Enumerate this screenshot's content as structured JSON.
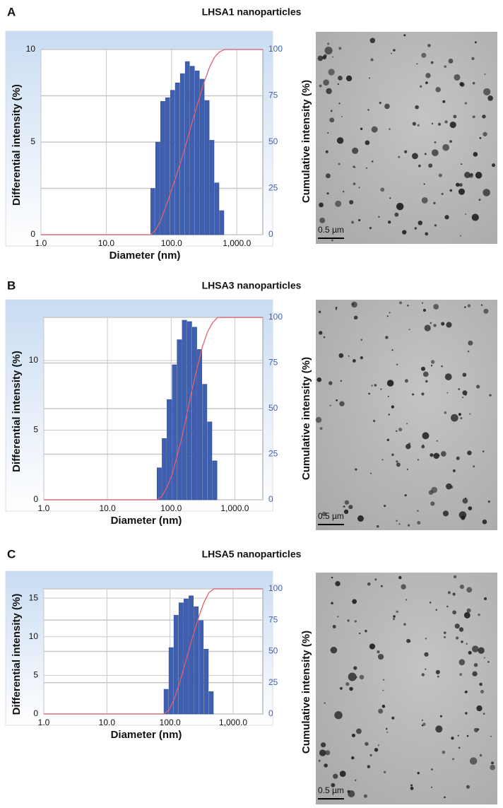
{
  "chart_data": [
    {
      "type": "histogram",
      "panel_label": "A",
      "title": "LHSA1 nanoparticles",
      "xlabel": "Diameter (nm)",
      "ylabel": "Differential intensity (%)",
      "y2label": "Cumulative intensity (%)",
      "log_x": true,
      "grid": true,
      "color": "#3f5fb0",
      "bins": [
        48,
        57,
        68,
        81,
        96,
        114,
        136,
        162,
        192,
        229,
        272,
        323,
        385,
        457,
        544,
        647
      ],
      "values": [
        2.5,
        5.0,
        7.2,
        7.4,
        7.8,
        8.2,
        8.7,
        9.35,
        9.1,
        8.85,
        8.4,
        7.25,
        5.1,
        2.8,
        1.3
      ],
      "line": {
        "axis": "y2",
        "color": "#e06070",
        "x": [
          1,
          40,
          48,
          57,
          68,
          81,
          96,
          114,
          136,
          162,
          192,
          229,
          272,
          323,
          385,
          457,
          544,
          647,
          2500
        ],
        "values": [
          0,
          0,
          0,
          2.5,
          7.6,
          14.9,
          22.3,
          30.2,
          38.5,
          47.3,
          56.7,
          65.9,
          74.9,
          83.4,
          90.7,
          95.9,
          98.7,
          100,
          100
        ]
      },
      "xlim": [
        1,
        2500
      ],
      "xticks": [
        {
          "value": 1,
          "label": "1.0"
        },
        {
          "value": 10,
          "label": "10.0"
        },
        {
          "value": 100,
          "label": "100.0"
        },
        {
          "value": 1000,
          "label": "1,000.0"
        }
      ],
      "ylim": [
        0,
        10
      ],
      "yticks": [
        0,
        5,
        10
      ],
      "y2lim": [
        0,
        100
      ],
      "y2ticks": [
        0,
        25,
        50,
        75,
        100
      ],
      "image": {
        "scale_bar": "0.5 µm"
      }
    },
    {
      "type": "histogram",
      "panel_label": "B",
      "title": "LHSA3 nanoparticles",
      "xlabel": "Diameter (nm)",
      "ylabel": "Differential intensity (%)",
      "y2label": "Cumulative intensity (%)",
      "log_x": true,
      "grid": true,
      "color": "#3f5fb0",
      "bins": [
        60,
        72,
        86,
        104,
        124,
        149,
        179,
        215,
        258,
        310,
        372,
        446,
        536
      ],
      "values": [
        2.3,
        4.4,
        7.2,
        9.7,
        11.5,
        12.9,
        12.8,
        12.4,
        10.8,
        8.3,
        5.6,
        2.8
      ],
      "line": {
        "axis": "y2",
        "color": "#e06070",
        "x": [
          1,
          50,
          60,
          72,
          86,
          104,
          124,
          149,
          179,
          215,
          258,
          310,
          372,
          446,
          536,
          2750
        ],
        "values": [
          0,
          0,
          0,
          2,
          7,
          14,
          24,
          35,
          48,
          61,
          73,
          84,
          92,
          97,
          100,
          100
        ]
      },
      "xlim": [
        1,
        2750
      ],
      "xticks": [
        {
          "value": 1,
          "label": "1.0"
        },
        {
          "value": 10,
          "label": "10.0"
        },
        {
          "value": 100,
          "label": "100.0"
        },
        {
          "value": 1000,
          "label": "1,000.0"
        }
      ],
      "ylim": [
        0,
        13.1
      ],
      "yticks": [
        0,
        5,
        10
      ],
      "y2lim": [
        0,
        100
      ],
      "y2ticks": [
        0,
        25,
        50,
        75,
        100
      ],
      "image": {
        "scale_bar": "0.5 µm"
      }
    },
    {
      "type": "histogram",
      "panel_label": "C",
      "title": "LHSA5 nanoparticles",
      "xlabel": "Diameter (nm)",
      "ylabel": "Differential intensity (%)",
      "y2label": "Cumulative intensity (%)",
      "log_x": true,
      "grid": true,
      "color": "#3f5fb0",
      "bins": [
        80,
        96,
        115,
        138,
        166,
        199,
        239,
        287,
        344,
        413,
        496
      ],
      "values": [
        3.2,
        8.6,
        12.8,
        14.4,
        14.9,
        15.3,
        13.9,
        12.1,
        8.4,
        2.9
      ],
      "line": {
        "axis": "y2",
        "color": "#e06070",
        "x": [
          1,
          70,
          80,
          96,
          115,
          138,
          166,
          199,
          239,
          287,
          344,
          413,
          496,
          2950
        ],
        "values": [
          0,
          0,
          0,
          3,
          11,
          23,
          37,
          51,
          65,
          78,
          89,
          97,
          100,
          100
        ]
      },
      "xlim": [
        1,
        2950
      ],
      "xticks": [
        {
          "value": 1,
          "label": "1.0"
        },
        {
          "value": 10,
          "label": "10.0"
        },
        {
          "value": 100,
          "label": "100.0"
        },
        {
          "value": 1000,
          "label": "1,000.0"
        }
      ],
      "ylim": [
        0,
        16.2
      ],
      "yticks": [
        0,
        5,
        10,
        15
      ],
      "y2lim": [
        0,
        100
      ],
      "y2ticks": [
        0,
        25,
        50,
        75,
        100
      ],
      "image": {
        "scale_bar": "0.5 µm"
      }
    }
  ]
}
